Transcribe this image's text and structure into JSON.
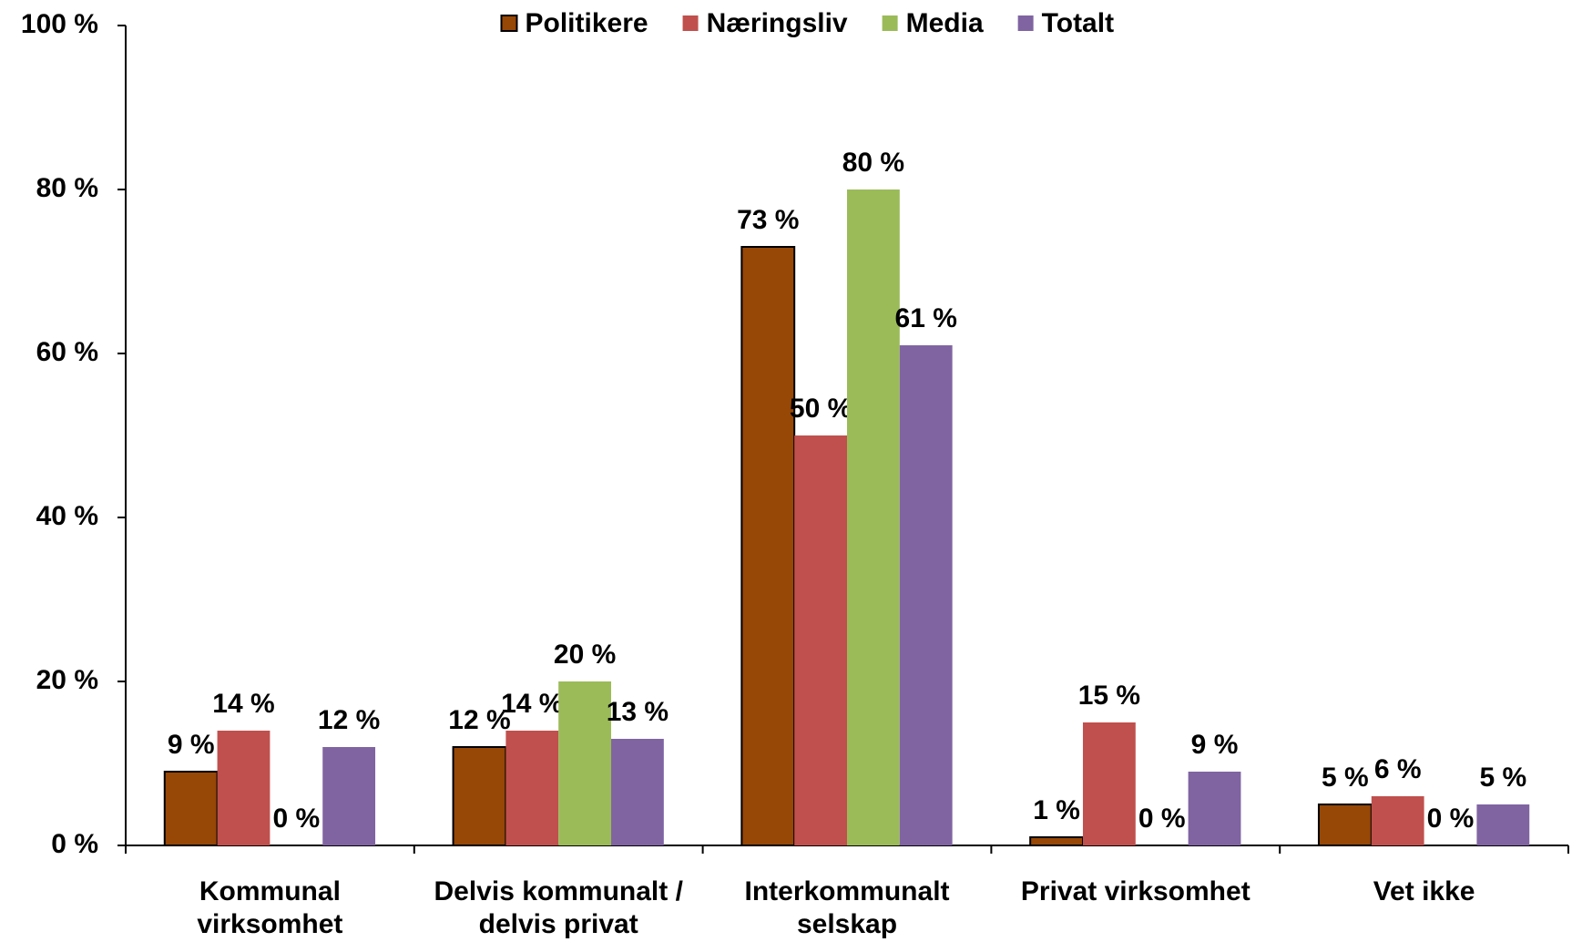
{
  "chart_data": {
    "type": "bar",
    "categories": [
      "Kommunal virksomhet",
      "Delvis kommunalt / delvis privat",
      "Interkommunalt selskap",
      "Privat virksomhet",
      "Vet ikke"
    ],
    "series": [
      {
        "name": "Politikere",
        "color": "#974706",
        "values": [
          9,
          12,
          73,
          1,
          5
        ],
        "value_labels": [
          "9 %",
          "12 %",
          "73 %",
          "1 %",
          "5 %"
        ]
      },
      {
        "name": "Næringsliv",
        "color": "#c0504d",
        "values": [
          14,
          14,
          50,
          15,
          6
        ],
        "value_labels": [
          "14 %",
          "14 %",
          "50 %",
          "15 %",
          "6 %"
        ]
      },
      {
        "name": "Media",
        "color": "#9bbb59",
        "values": [
          0,
          20,
          80,
          0,
          0
        ],
        "value_labels": [
          "0 %",
          "20 %",
          "80 %",
          "0 %",
          "0 %"
        ]
      },
      {
        "name": "Totalt",
        "color": "#8064a2",
        "values": [
          12,
          13,
          61,
          9,
          5
        ],
        "value_labels": [
          "12 %",
          "13 %",
          "61 %",
          "9 %",
          "5 %"
        ]
      }
    ],
    "ylim": [
      0,
      100
    ],
    "yticks": [
      {
        "value": 0,
        "label": "0 %"
      },
      {
        "value": 20,
        "label": "20 %"
      },
      {
        "value": 40,
        "label": "40 %"
      },
      {
        "value": 60,
        "label": "60 %"
      },
      {
        "value": 80,
        "label": "80 %"
      },
      {
        "value": 100,
        "label": "100 %"
      }
    ],
    "legend": "top",
    "grid": false
  }
}
